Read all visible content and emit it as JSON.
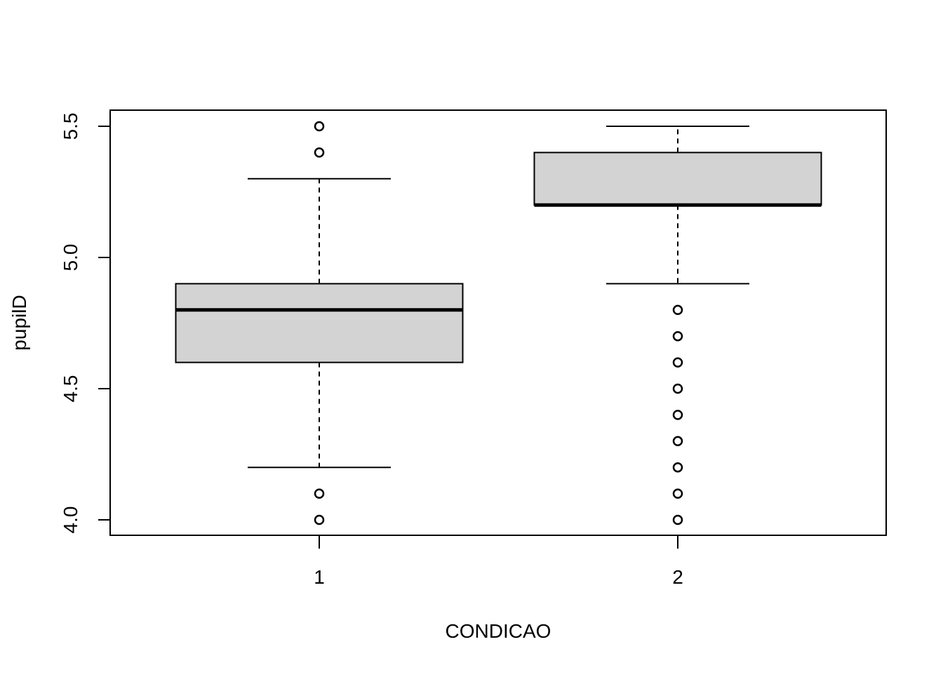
{
  "chart_data": {
    "type": "boxplot",
    "title": "",
    "xlabel": "CONDICAO",
    "ylabel": "pupilD",
    "categories": [
      "1",
      "2"
    ],
    "ylim": [
      3.94,
      5.56
    ],
    "yticks": [
      "4.0",
      "4.5",
      "5.0",
      "5.5"
    ],
    "grid": false,
    "box_fill": "#d3d3d3",
    "stroke": "#000000",
    "boxes": [
      {
        "category": "1",
        "whisker_low": 4.2,
        "q1": 4.6,
        "median": 4.8,
        "q3": 4.9,
        "whisker_high": 5.3,
        "outliers": [
          4.0,
          4.1,
          5.4,
          5.5
        ]
      },
      {
        "category": "2",
        "whisker_low": 4.9,
        "q1": 5.2,
        "median": 5.2,
        "q3": 5.4,
        "whisker_high": 5.5,
        "outliers": [
          4.0,
          4.1,
          4.2,
          4.3,
          4.4,
          4.5,
          4.6,
          4.7,
          4.8
        ]
      }
    ]
  }
}
